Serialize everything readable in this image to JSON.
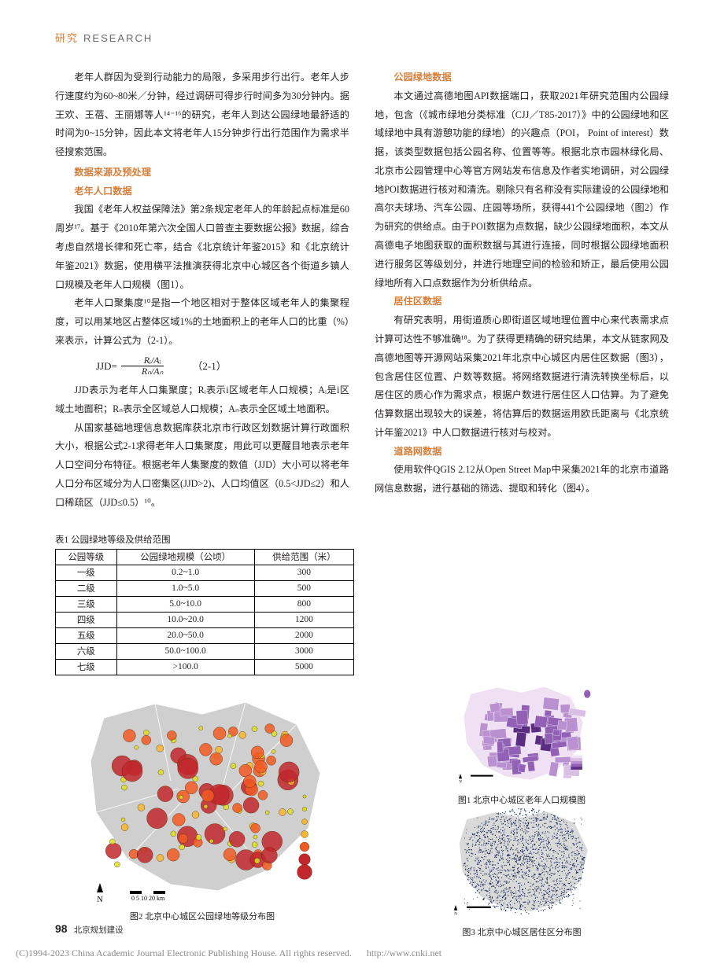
{
  "header": {
    "left": "研究",
    "right": "RESEARCH"
  },
  "left_col": {
    "p1": "老年人群因为受到行动能力的局限，多采用步行出行。老年人步行速度约为60~80米／分钟，经过调研可得步行时间多为30分钟内。据王欢、王蓓、王丽娜等人¹⁴⁻¹⁶的研究，老年人到达公园绿地最舒适的时间为0~15分钟，因此本文将老年人15分钟步行出行范围作为需求半径搜索范围。",
    "h1": "数据来源及预处理",
    "h1a": "老年人口数据",
    "p2": "我国《老年人权益保障法》第2条规定老年人的年龄起点标准是60周岁¹⁷。基于《2010年第六次全国人口普查主要数据公报》数据，综合考虑自然增长律和死亡率，结合《北京统计年鉴2015》和《北京统计年鉴2021》数据，使用横平法推演获得北京中心城区各个街道乡镇人口规模及老年人口规模（图1）。",
    "p3": "老年人口聚集度¹⁰是指一个地区相对于整体区域老年人的集聚程度，可以用某地区占整体区域1%的土地面积上的老年人口的比重（%）来表示，计算公式为（2-1）。",
    "formula_lhs": "JJD=",
    "formula_num": "Rᵢ/Aᵢ",
    "formula_den": "Rₙ/Aₙ",
    "formula_no": "（2-1）",
    "p4": "JJD表示为老年人口集聚度；Rᵢ表示i区域老年人口规模；Aᵢ是i区域土地面积；Rₙ表示全区域总人口规模；Aₙ表示全区域土地面积。",
    "p5": "从国家基础地理信息数据库获北京市行政区划数据计算行政面积大小，根据公式2-1求得老年人口集聚度，用此可以更醒目地表示老年人口空间分布特征。根据老年人集聚度的数值（JJD）大小可以将老年人口分布区域分为人口密集区(JJD>2)、人口均值区（0.5<JJD≤2）和人口稀疏区（JJD≤0.5）¹⁰。"
  },
  "right_col": {
    "h1": "公园绿地数据",
    "p1": "本文通过高德地图API数据端口，获取2021年研究范围内公园绿地，包含（《城市绿地分类标准（CJJ／T85-2017）》中的公园绿地和区域绿地中具有游憩功能的绿地）的兴趣点（POI，  Point  of  interest）数据，该类型数据包括公园名称、位置等等。根据北京市园林绿化局、北京市公园管理中心等官方网站发布信息及作者实地调研，对公园绿地POI数据进行核对和清洗。剔除只有名称没有实际建设的公园绿地和高尔夫球场、汽车公园、庄园等场所，获得441个公园绿地（图2）作为研究的供给点。由于POI数据为点数据，缺少公园绿地面积，本文从高德电子地图获取的面积数据与其进行连接，同时根据公园绿地面积进行服务区等级划分，并进行地理空间的检验和矫正，最后使用公园绿地所有入口点数据作为分析供给点。",
    "h2": "居住区数据",
    "p2": "有研究表明，用街道质心即街道区域地理位置中心来代表需求点计算可达性不够准确¹⁸。为了获得更精确的研究结果，本文从链家网及高德地图等开源网站采集2021年北京中心城区内居住区数据（图3），包含居住区位置、户数等数据。将网络数据进行清洗转换坐标后，以居住区的质心作为需求点，根据户数进行居住区人口估算。为了避免估算数据出现较大的误差，将估算后的数据运用欧氏距离与《北京统计年鉴2021》中人口数据进行核对与校对。",
    "h3": "道路网数据",
    "p3": "使用软件QGIS 2.12从Open  Street  Map中采集2021年的北京市道路网信息数据，进行基础的筛选、提取和转化（图4）。"
  },
  "table1": {
    "caption": "表1 公园绿地等级及供给范围",
    "columns": [
      "公园等级",
      "公园绿地规模（公顷）",
      "供给范围（米）"
    ],
    "rows": [
      [
        "一级",
        "0.2~1.0",
        "300"
      ],
      [
        "二级",
        "1.0~5.0",
        "500"
      ],
      [
        "三级",
        "5.0~10.0",
        "800"
      ],
      [
        "四级",
        "10.0~20.0",
        "1200"
      ],
      [
        "五级",
        "20.0~50.0",
        "2000"
      ],
      [
        "六级",
        "50.0~100.0",
        "3000"
      ],
      [
        "七级",
        ">100.0",
        "5000"
      ]
    ]
  },
  "fig1": {
    "caption": "图1 北京中心城区老年人口规模图",
    "shape_fill": "#c6a6d8",
    "center_fill": "#7b4fa0",
    "outline": "#ffffff",
    "bg": "#ffffff",
    "choropleth_palette": [
      "#efe1f3",
      "#d9bfe4",
      "#ba91d0",
      "#9261b6",
      "#5a2d82"
    ]
  },
  "fig2": {
    "caption": "图2 北京中心城区公园绿地等级分布图",
    "shape_fill": "#cfcfcf",
    "outline": "#ffffff",
    "bubble_palette": [
      "#d9e021",
      "#f7b733",
      "#f15a24",
      "#c1272d"
    ],
    "sizes": [
      3,
      5,
      7,
      10,
      14,
      18,
      24
    ]
  },
  "fig3": {
    "caption": "图3 北京中心城区居住区分布图",
    "shape_fill": "#d9d9d9",
    "outline": "#ffffff",
    "dot_color": "#0b1e4d"
  },
  "legend_labels": {
    "compass": "N",
    "scale": "0   5   10    20 km"
  },
  "footer": {
    "page": "98",
    "src": "北京规划建设"
  },
  "copyright": {
    "text": "(C)1994-2023 China Academic Journal Electronic Publishing House. All rights reserved.",
    "link": "http://www.cnki.net"
  }
}
